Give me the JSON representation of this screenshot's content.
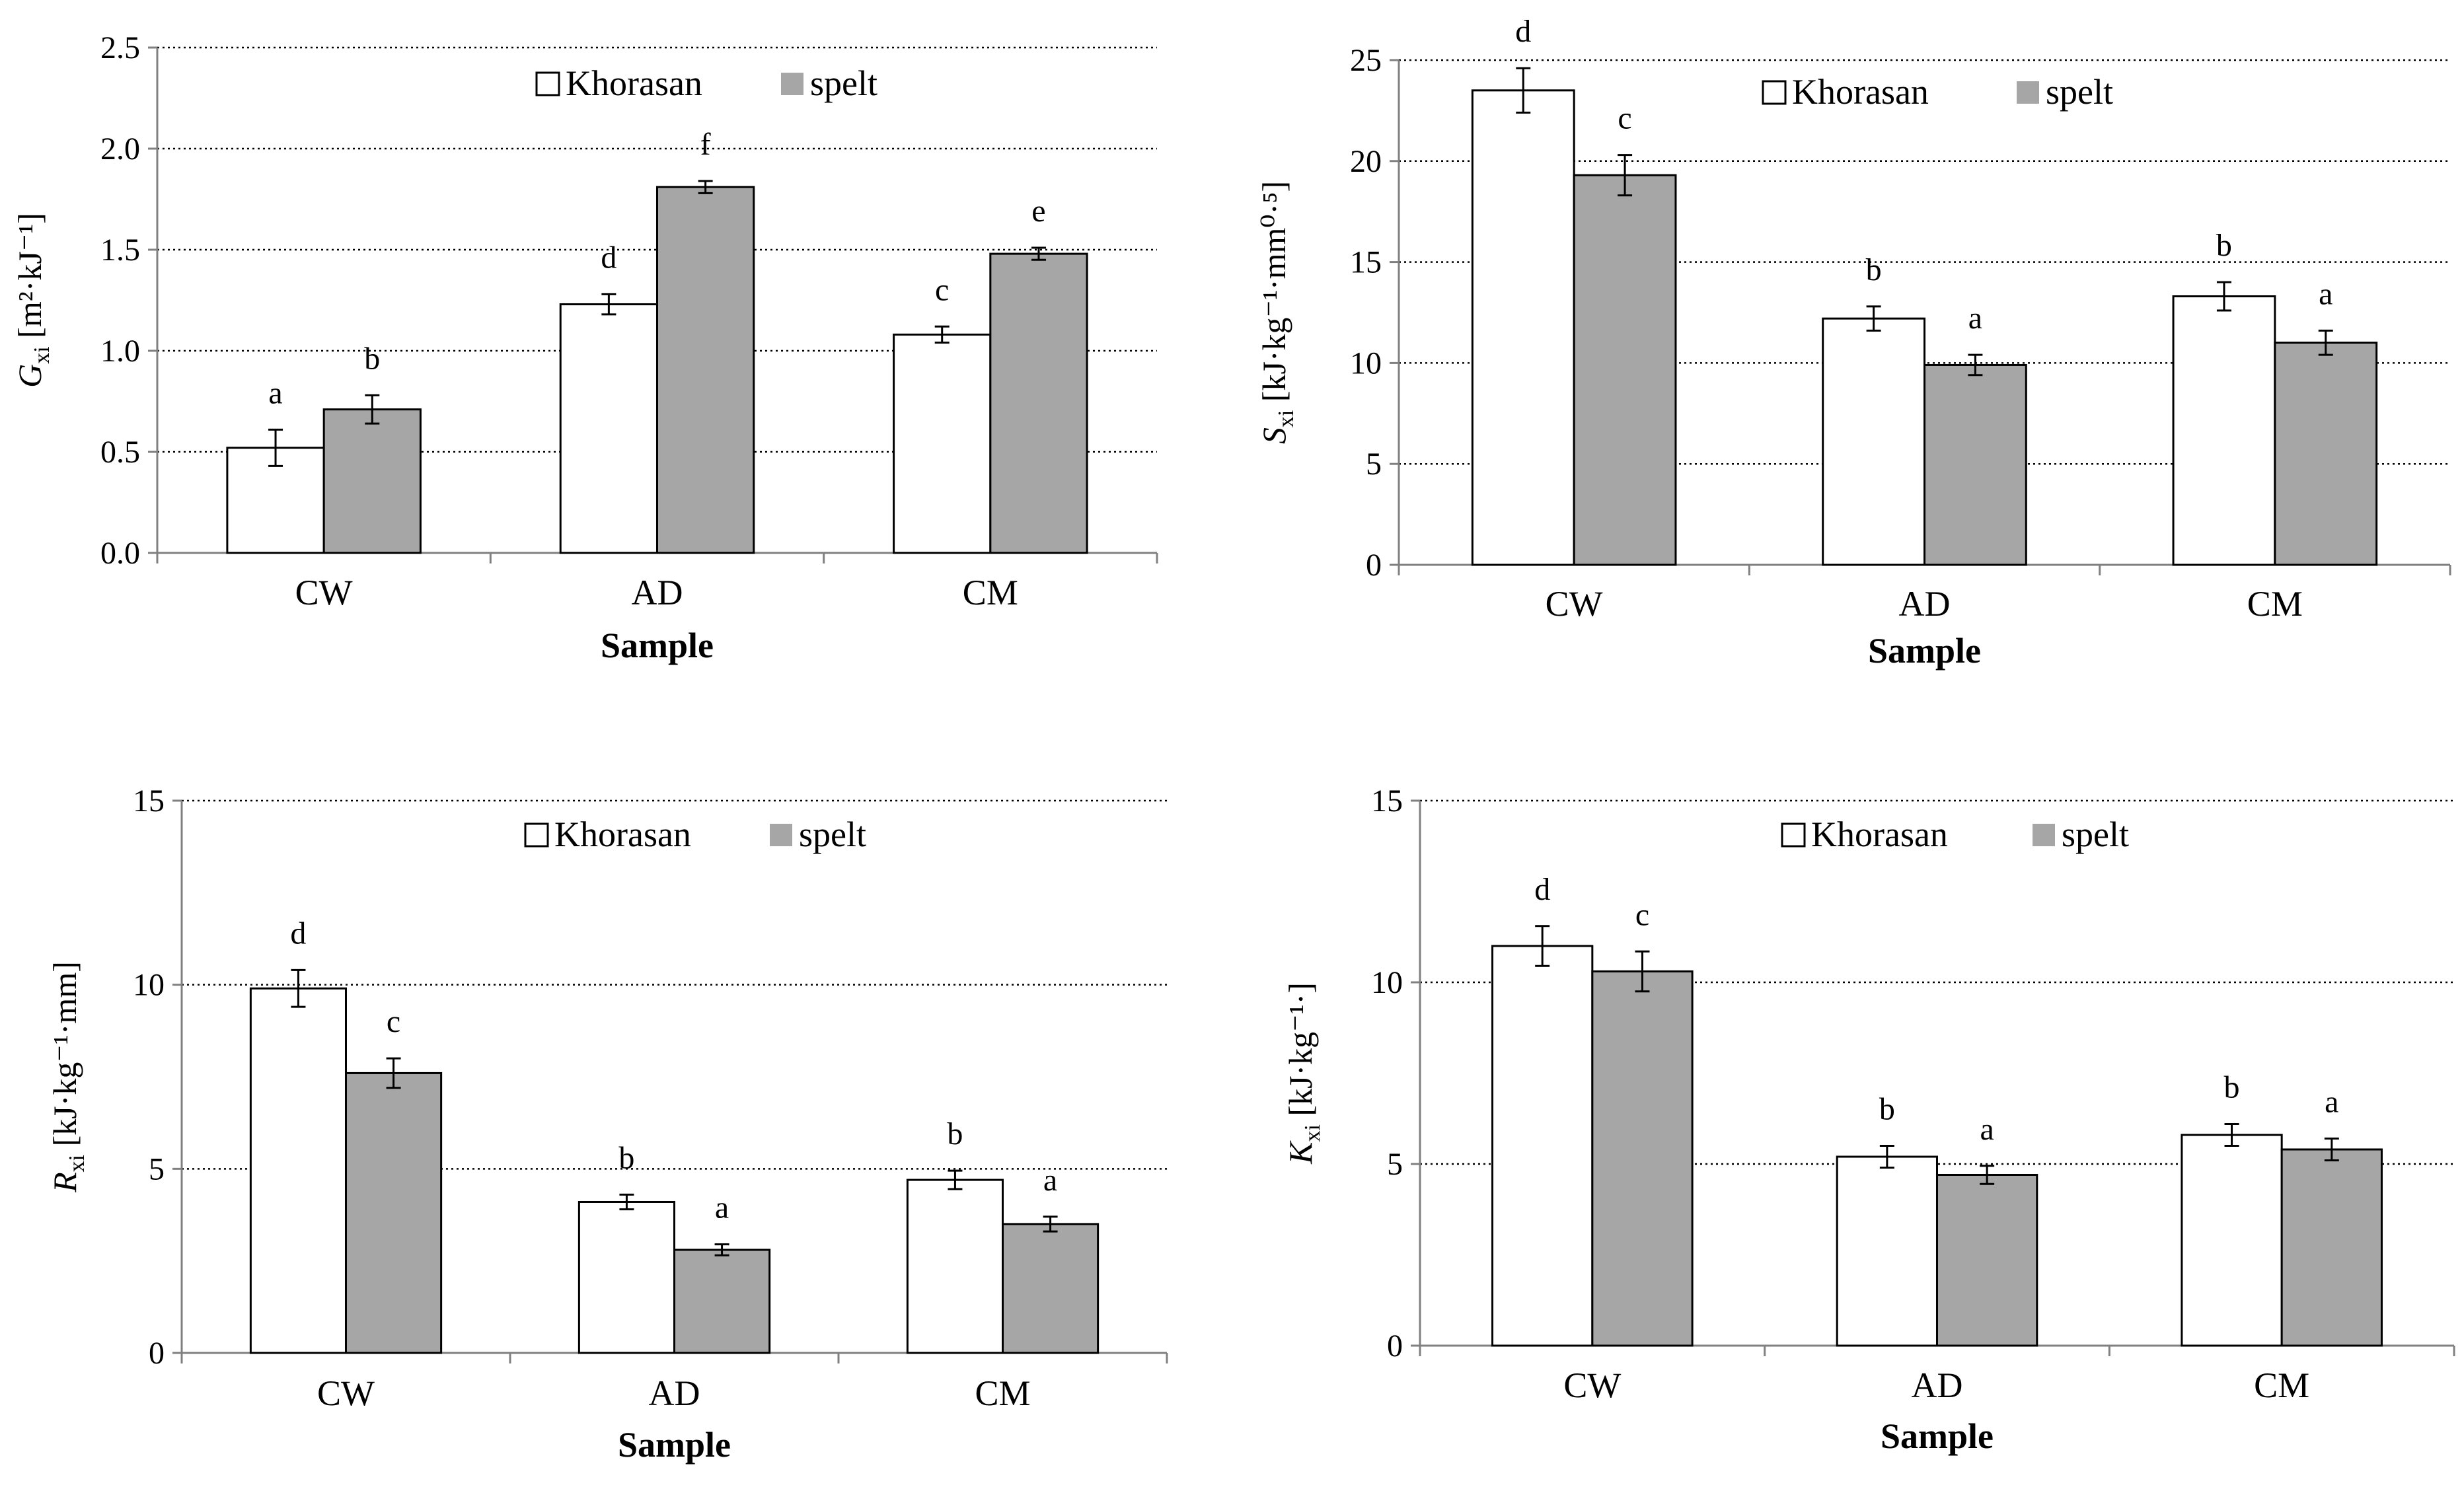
{
  "chart_data": [
    {
      "type": "bar",
      "panel": "top-left",
      "title": "",
      "xlabel": "Sample",
      "ylabel": {
        "symbol": "G",
        "sub": "xi",
        "units": " [m²·kJ⁻¹]"
      },
      "categories": [
        "CW",
        "AD",
        "CM"
      ],
      "ylim": [
        0,
        2.5
      ],
      "yticks": [
        "0.0",
        "0.5",
        "1.0",
        "1.5",
        "2.0",
        "2.5"
      ],
      "legend": [
        "Khorasan",
        "spelt"
      ],
      "series": [
        {
          "name": "Khorasan",
          "values": [
            0.52,
            1.23,
            1.08
          ],
          "errors": [
            0.09,
            0.05,
            0.04
          ],
          "letters": [
            "a",
            "d",
            "c"
          ]
        },
        {
          "name": "spelt",
          "values": [
            0.71,
            1.81,
            1.48
          ],
          "errors": [
            0.07,
            0.03,
            0.03
          ],
          "letters": [
            "b",
            "f",
            "e"
          ]
        }
      ],
      "colors": {
        "Khorasan": "#ffffff",
        "spelt": "#a6a6a6"
      },
      "grid": true
    },
    {
      "type": "bar",
      "panel": "top-right",
      "title": "",
      "xlabel": "Sample",
      "ylabel": {
        "symbol": "S",
        "sub": "xi",
        "units": " [kJ·kg⁻¹·mm⁰·⁵]"
      },
      "categories": [
        "CW",
        "AD",
        "CM"
      ],
      "ylim": [
        0,
        25
      ],
      "yticks": [
        "0",
        "5",
        "10",
        "15",
        "20",
        "25"
      ],
      "legend": [
        "Khorasan",
        "spelt"
      ],
      "series": [
        {
          "name": "Khorasan",
          "values": [
            23.5,
            12.2,
            13.3
          ],
          "errors": [
            1.1,
            0.6,
            0.7
          ],
          "letters": [
            "d",
            "b",
            "b"
          ]
        },
        {
          "name": "spelt",
          "values": [
            19.3,
            9.9,
            11.0
          ],
          "errors": [
            1.0,
            0.5,
            0.6
          ],
          "letters": [
            "c",
            "a",
            "a"
          ]
        }
      ],
      "colors": {
        "Khorasan": "#ffffff",
        "spelt": "#a6a6a6"
      },
      "grid": true
    },
    {
      "type": "bar",
      "panel": "bottom-left",
      "title": "",
      "xlabel": "Sample",
      "ylabel": {
        "symbol": "R",
        "sub": "xi",
        "units": " [kJ·kg⁻¹·mm]"
      },
      "categories": [
        "CW",
        "AD",
        "CM"
      ],
      "ylim": [
        0,
        15
      ],
      "yticks": [
        "0",
        "5",
        "10",
        "15"
      ],
      "legend": [
        "Khorasan",
        "spelt"
      ],
      "series": [
        {
          "name": "Khorasan",
          "values": [
            9.9,
            4.1,
            4.7
          ],
          "errors": [
            0.5,
            0.2,
            0.25
          ],
          "letters": [
            "d",
            "b",
            "b"
          ]
        },
        {
          "name": "spelt",
          "values": [
            7.6,
            2.8,
            3.5
          ],
          "errors": [
            0.4,
            0.15,
            0.2
          ],
          "letters": [
            "c",
            "a",
            "a"
          ]
        }
      ],
      "colors": {
        "Khorasan": "#ffffff",
        "spelt": "#a6a6a6"
      },
      "grid": true
    },
    {
      "type": "bar",
      "panel": "bottom-right",
      "title": "",
      "xlabel": "Sample",
      "ylabel": {
        "symbol": "K",
        "sub": "xi",
        "units": " [kJ·kg⁻¹·]"
      },
      "categories": [
        "CW",
        "AD",
        "CM"
      ],
      "ylim": [
        0,
        15
      ],
      "yticks": [
        "0",
        "5",
        "10",
        "15"
      ],
      "legend": [
        "Khorasan",
        "spelt"
      ],
      "series": [
        {
          "name": "Khorasan",
          "values": [
            11.0,
            5.2,
            5.8
          ],
          "errors": [
            0.55,
            0.3,
            0.3
          ],
          "letters": [
            "d",
            "b",
            "b"
          ]
        },
        {
          "name": "spelt",
          "values": [
            10.3,
            4.7,
            5.4
          ],
          "errors": [
            0.55,
            0.25,
            0.3
          ],
          "letters": [
            "c",
            "a",
            "a"
          ]
        }
      ],
      "colors": {
        "Khorasan": "#ffffff",
        "spelt": "#a6a6a6"
      },
      "grid": true
    }
  ]
}
